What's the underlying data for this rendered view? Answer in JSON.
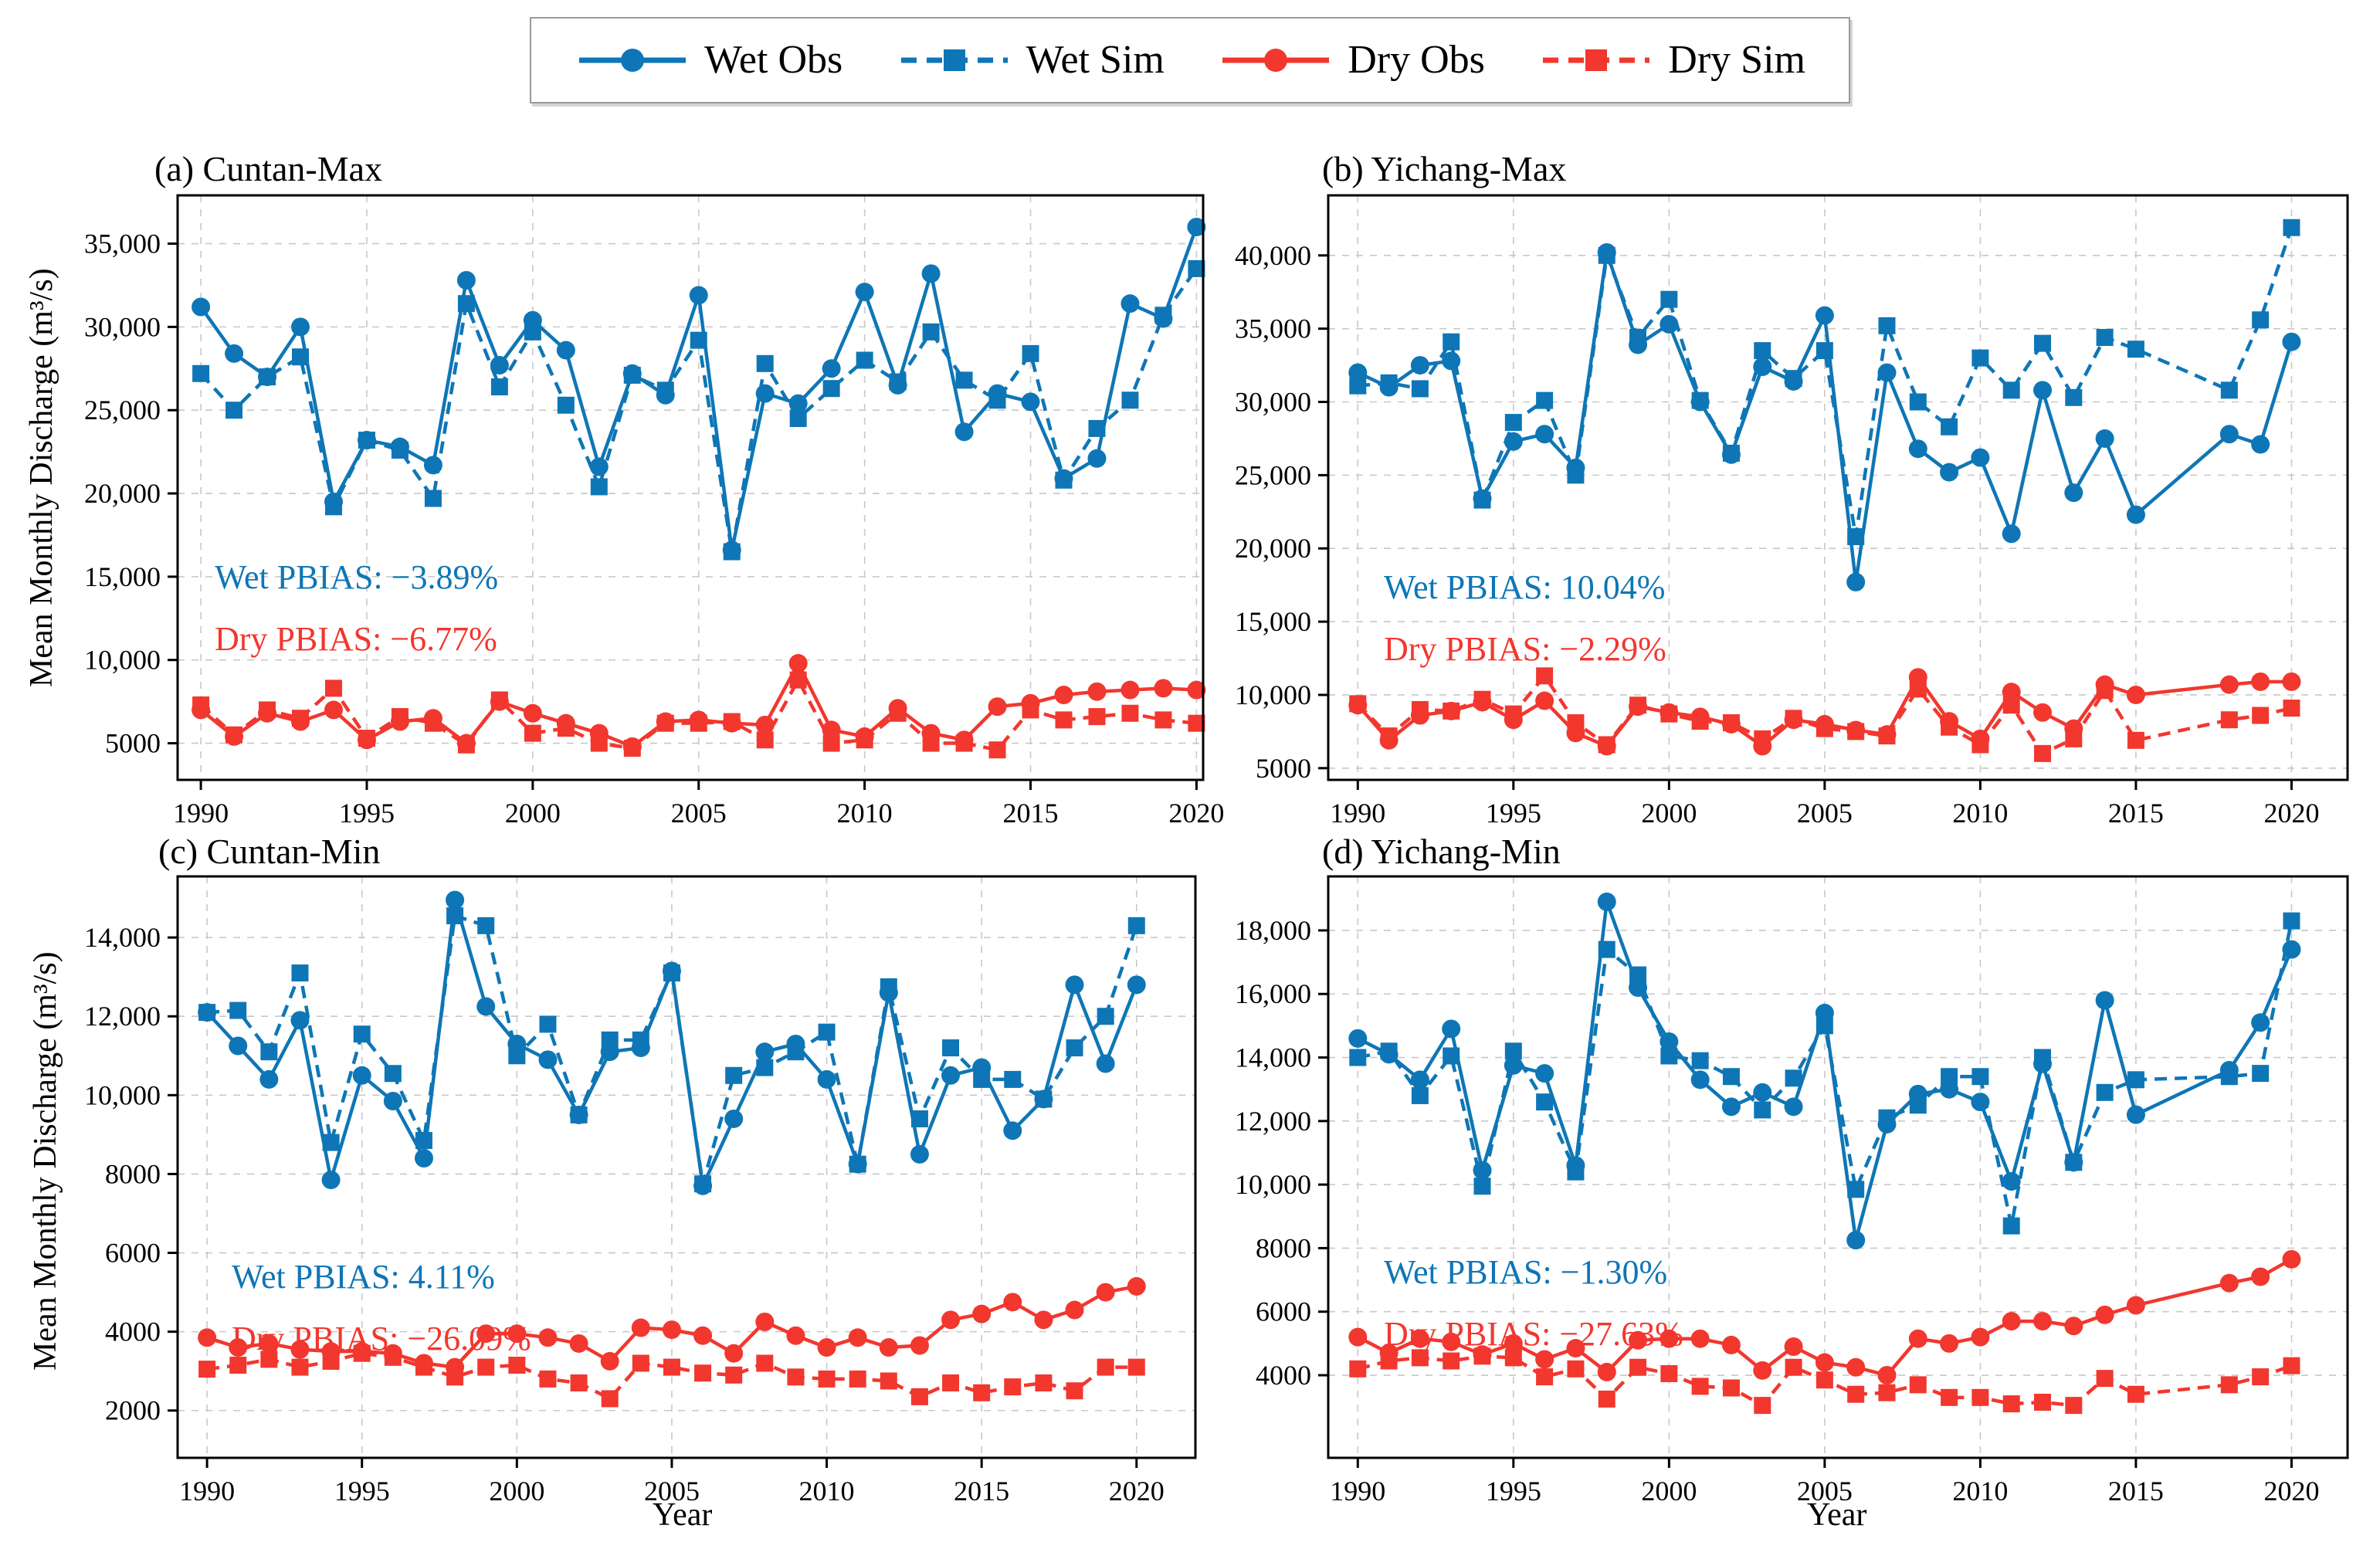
{
  "colors": {
    "wet": "#0e76b6",
    "dry": "#f2372e",
    "grid": "#c8c8c8",
    "axis": "#000000"
  },
  "legend": {
    "items": [
      {
        "label": "Wet Obs",
        "style": "wet_obs"
      },
      {
        "label": "Wet Sim",
        "style": "wet_sim"
      },
      {
        "label": "Dry Obs",
        "style": "dry_obs"
      },
      {
        "label": "Dry Sim",
        "style": "dry_sim"
      }
    ]
  },
  "styles": {
    "wet_obs": {
      "color": "#0e76b6",
      "line": "solid",
      "marker": "circle"
    },
    "wet_sim": {
      "color": "#0e76b6",
      "line": "dashed",
      "marker": "square"
    },
    "dry_obs": {
      "color": "#f2372e",
      "line": "solid",
      "marker": "circle"
    },
    "dry_sim": {
      "color": "#f2372e",
      "line": "dashed",
      "marker": "square"
    }
  },
  "axes": {
    "ylabel": "Mean Monthly Discharge (m³/s)",
    "xlabel": "Year"
  },
  "years": [
    1990,
    1991,
    1992,
    1993,
    1994,
    1995,
    1996,
    1997,
    1998,
    1999,
    2000,
    2001,
    2002,
    2003,
    2004,
    2005,
    2006,
    2007,
    2008,
    2009,
    2010,
    2011,
    2012,
    2013,
    2014,
    2015,
    2016,
    2017,
    2018,
    2019,
    2020
  ],
  "chart_data": [
    {
      "type": "line",
      "title": "(a) Cuntan-Max",
      "x_ticks": [
        1990,
        1995,
        2000,
        2005,
        2010,
        2015,
        2020
      ],
      "y_ticks": [
        5000,
        10000,
        15000,
        20000,
        25000,
        30000,
        35000
      ],
      "ylim": [
        2800,
        37900
      ],
      "annotations": {
        "wet": "Wet PBIAS: −3.89%",
        "dry": "Dry PBIAS: −6.77%"
      },
      "series": [
        {
          "name": "Wet Obs",
          "style": "wet_obs",
          "values": [
            31200,
            28400,
            27000,
            30000,
            19500,
            23200,
            22800,
            21700,
            32800,
            27700,
            30400,
            28600,
            21600,
            27200,
            25900,
            31900,
            16600,
            26000,
            25400,
            27500,
            32100,
            26500,
            33200,
            23700,
            26000,
            25500,
            20900,
            22100,
            31400,
            30500,
            36000
          ]
        },
        {
          "name": "Wet Sim",
          "style": "wet_sim",
          "values": [
            27200,
            25000,
            27000,
            28200,
            19200,
            23200,
            22600,
            19700,
            31400,
            26400,
            29700,
            25300,
            20400,
            27100,
            26200,
            29200,
            16500,
            27800,
            24500,
            26300,
            28000,
            26700,
            29700,
            26800,
            25600,
            28400,
            20800,
            23900,
            25600,
            30700,
            33500
          ]
        },
        {
          "name": "Dry Obs",
          "style": "dry_obs",
          "values": [
            7000,
            5400,
            6800,
            6300,
            7000,
            5200,
            6300,
            6500,
            5000,
            7500,
            6800,
            6200,
            5600,
            4800,
            6300,
            6400,
            6200,
            6100,
            9800,
            5800,
            5400,
            7100,
            5600,
            5200,
            7200,
            7400,
            7900,
            8100,
            8200,
            8300,
            8200
          ]
        },
        {
          "name": "Dry Sim",
          "style": "dry_sim",
          "values": [
            7300,
            5500,
            7000,
            6500,
            8300,
            5300,
            6600,
            6200,
            4900,
            7600,
            5600,
            5900,
            5000,
            4700,
            6200,
            6200,
            6300,
            5200,
            8800,
            5000,
            5200,
            6800,
            5000,
            5000,
            4600,
            7000,
            6400,
            6600,
            6800,
            6400,
            6200
          ]
        }
      ]
    },
    {
      "type": "line",
      "title": "(b) Yichang-Max",
      "x_ticks": [
        1990,
        1995,
        2000,
        2005,
        2010,
        2015,
        2020
      ],
      "y_ticks": [
        5000,
        10000,
        15000,
        20000,
        25000,
        30000,
        35000,
        40000
      ],
      "ylim": [
        4200,
        44100
      ],
      "annotations": {
        "wet": "Wet PBIAS: 10.04%",
        "dry": "Dry PBIAS: −2.29%"
      },
      "series": [
        {
          "name": "Wet Obs",
          "style": "wet_obs",
          "values": [
            32000,
            31000,
            32500,
            32800,
            23400,
            27300,
            27800,
            25500,
            40200,
            33900,
            35300,
            30000,
            26400,
            32400,
            31400,
            35900,
            17700,
            32000,
            26800,
            25200,
            26200,
            21000,
            30800,
            23800,
            27500,
            22300,
            null,
            null,
            27800,
            27100,
            34100
          ]
        },
        {
          "name": "Wet Sim",
          "style": "wet_sim",
          "values": [
            31100,
            31300,
            30900,
            34100,
            23300,
            28600,
            30100,
            25000,
            40000,
            34400,
            37000,
            30100,
            26500,
            33500,
            31600,
            33500,
            20800,
            35200,
            30000,
            28300,
            33000,
            30800,
            34000,
            30300,
            34400,
            33600,
            null,
            null,
            30800,
            35600,
            41900
          ]
        },
        {
          "name": "Dry Obs",
          "style": "dry_obs",
          "values": [
            9300,
            6900,
            8600,
            8900,
            9500,
            8300,
            9600,
            7400,
            6500,
            9200,
            8800,
            8500,
            8000,
            6500,
            8300,
            8000,
            7600,
            7300,
            11200,
            8200,
            7000,
            10200,
            8800,
            7700,
            10700,
            10000,
            null,
            null,
            10700,
            10900,
            10900
          ]
        },
        {
          "name": "Dry Sim",
          "style": "dry_sim",
          "values": [
            9400,
            7200,
            9000,
            8900,
            9700,
            8700,
            11300,
            8100,
            6600,
            9300,
            8700,
            8200,
            8100,
            7000,
            8400,
            7700,
            7500,
            7200,
            10400,
            7800,
            6600,
            9300,
            6000,
            7000,
            10300,
            6900,
            null,
            null,
            8300,
            8600,
            9100
          ]
        }
      ]
    },
    {
      "type": "line",
      "title": "(c) Cuntan-Min",
      "x_ticks": [
        1990,
        1995,
        2000,
        2005,
        2010,
        2015,
        2020
      ],
      "y_ticks": [
        2000,
        4000,
        6000,
        8000,
        10000,
        12000,
        14000
      ],
      "ylim": [
        800,
        15550
      ],
      "annotations": {
        "wet": "Wet PBIAS: 4.11%",
        "dry": "Dry PBIAS: −26.09%"
      },
      "series": [
        {
          "name": "Wet Obs",
          "style": "wet_obs",
          "values": [
            12100,
            11250,
            10400,
            11900,
            7850,
            10500,
            9850,
            8400,
            14950,
            12250,
            11300,
            10900,
            9500,
            11100,
            11200,
            13150,
            7700,
            9400,
            11100,
            11300,
            10400,
            8250,
            12600,
            8500,
            10500,
            10700,
            9100,
            9900,
            12800,
            10800,
            12800
          ]
        },
        {
          "name": "Wet Sim",
          "style": "wet_sim",
          "values": [
            12100,
            12150,
            11100,
            13100,
            8800,
            11550,
            10550,
            8850,
            14550,
            14300,
            11000,
            11800,
            9500,
            11400,
            11400,
            13100,
            7750,
            10500,
            10700,
            11100,
            11600,
            8250,
            12750,
            9400,
            11200,
            10400,
            10400,
            9900,
            11200,
            12000,
            14300
          ]
        },
        {
          "name": "Dry Obs",
          "style": "dry_obs",
          "values": [
            3850,
            3600,
            3700,
            3550,
            3500,
            3500,
            3450,
            3200,
            3100,
            3950,
            3950,
            3850,
            3700,
            3250,
            4100,
            4050,
            3900,
            3450,
            4250,
            3900,
            3600,
            3850,
            3600,
            3650,
            4300,
            4450,
            4750,
            4300,
            4550,
            5000,
            5150
          ]
        },
        {
          "name": "Dry Sim",
          "style": "dry_sim",
          "values": [
            3050,
            3150,
            3300,
            3100,
            3250,
            3450,
            3350,
            3100,
            2850,
            3100,
            3150,
            2800,
            2700,
            2300,
            3200,
            3100,
            2950,
            2900,
            3200,
            2850,
            2800,
            2800,
            2750,
            2350,
            2700,
            2450,
            2600,
            2700,
            2500,
            3100,
            3100
          ]
        }
      ]
    },
    {
      "type": "line",
      "title": "(d) Yichang-Min",
      "x_ticks": [
        1990,
        1995,
        2000,
        2005,
        2010,
        2015,
        2020
      ],
      "y_ticks": [
        4000,
        6000,
        8000,
        10000,
        12000,
        14000,
        16000,
        18000
      ],
      "ylim": [
        1400,
        19700
      ],
      "annotations": {
        "wet": "Wet PBIAS: −1.30%",
        "dry": "Dry PBIAS: −27.63%"
      },
      "series": [
        {
          "name": "Wet Obs",
          "style": "wet_obs",
          "values": [
            14600,
            14100,
            13300,
            14900,
            10450,
            13750,
            13500,
            10600,
            18900,
            16200,
            14500,
            13300,
            12450,
            12900,
            12450,
            15400,
            8250,
            11900,
            12850,
            13000,
            12600,
            10100,
            13800,
            10700,
            15800,
            12200,
            null,
            null,
            13600,
            15100,
            17400
          ]
        },
        {
          "name": "Wet Sim",
          "style": "wet_sim",
          "values": [
            14000,
            14200,
            12800,
            14050,
            9950,
            14200,
            12600,
            10400,
            17400,
            16600,
            14050,
            13900,
            13400,
            12350,
            13350,
            15000,
            9850,
            12100,
            12500,
            13400,
            13400,
            8700,
            14000,
            10700,
            12900,
            13300,
            null,
            null,
            13400,
            13500,
            18300
          ]
        },
        {
          "name": "Dry Obs",
          "style": "dry_obs",
          "values": [
            5200,
            4700,
            5150,
            5050,
            4650,
            5000,
            4500,
            4850,
            4100,
            5100,
            5150,
            5150,
            4950,
            4150,
            4900,
            4400,
            4250,
            4000,
            5150,
            5000,
            5200,
            5700,
            5700,
            5550,
            5900,
            6200,
            null,
            null,
            6900,
            7100,
            7650
          ]
        },
        {
          "name": "Dry Sim",
          "style": "dry_sim",
          "values": [
            4200,
            4450,
            4550,
            4450,
            4600,
            4550,
            3950,
            4200,
            3250,
            4250,
            4050,
            3650,
            3600,
            3050,
            4250,
            3850,
            3400,
            3450,
            3700,
            3300,
            3300,
            3100,
            3150,
            3050,
            3900,
            3400,
            null,
            null,
            3700,
            3950,
            4300
          ]
        }
      ]
    }
  ]
}
